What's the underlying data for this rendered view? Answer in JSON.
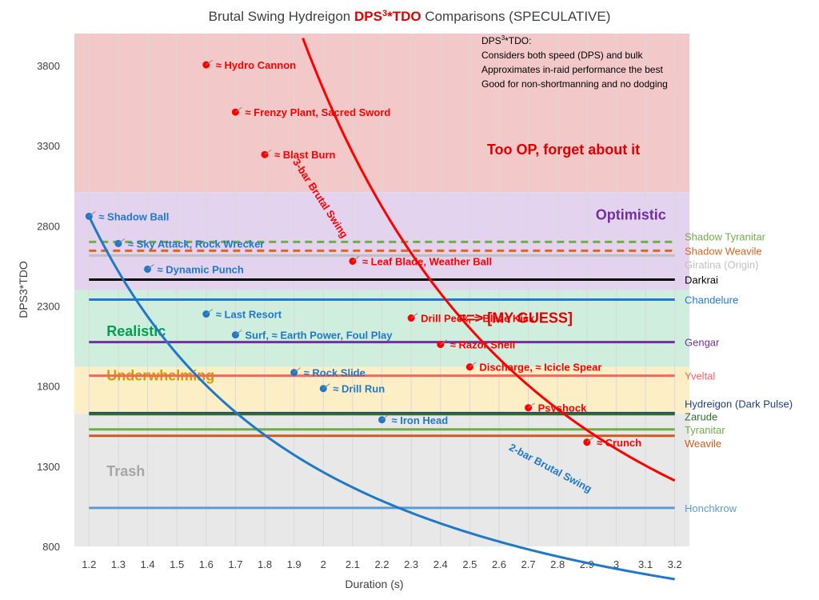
{
  "chart_data": {
    "type": "line",
    "title": {
      "prefix": "Brutal Swing Hydreigon ",
      "emphasis_base": "DPS",
      "emphasis_sup": "3",
      "emphasis_rest": "*TDO",
      "suffix": " Comparisons (SPECULATIVE)",
      "emphasis_color": "#e00000"
    },
    "xlabel": "Duration (s)",
    "ylabel": "DPS3*TDO",
    "xlim": [
      1.15,
      3.25
    ],
    "ylim": [
      800,
      4000
    ],
    "x_ticks": [
      "1.2",
      "1.3",
      "1.4",
      "1.5",
      "1.6",
      "1.7",
      "1.8",
      "1.9",
      "2",
      "2.1",
      "2.2",
      "2.3",
      "2.4",
      "2.5",
      "2.6",
      "2.7",
      "2.8",
      "2.9",
      "3",
      "3.1",
      "3.2"
    ],
    "y_ticks": [
      "800",
      "1300",
      "1800",
      "2300",
      "2800",
      "3300",
      "3800"
    ],
    "grid": true,
    "bands": [
      {
        "label": "Too OP, forget about it",
        "from": 3010,
        "to": 4000,
        "color": "#f2c8c8",
        "label_color": "#e00000",
        "label_x": 2.82,
        "label_y": 3245,
        "label_size": 18
      },
      {
        "label": "Optimistic",
        "from": 2400,
        "to": 3010,
        "color": "#e4d3ee",
        "label_color": "#7030a0",
        "label_x": 3.05,
        "label_y": 2840,
        "label_size": 18
      },
      {
        "label": "Realistic",
        "from": 1920,
        "to": 2400,
        "color": "#cfeedd",
        "label_color": "#00a050",
        "label_x": 1.26,
        "label_y": 2112,
        "label_size": 18
      },
      {
        "label": "Underwhelming",
        "from": 1630,
        "to": 1920,
        "color": "#fcefc6",
        "label_color": "#c8a000",
        "label_x": 1.26,
        "label_y": 1835,
        "label_size": 18
      },
      {
        "label": "Trash",
        "from": 800,
        "to": 1630,
        "color": "#e8e8e8",
        "label_color": "#a6a6a6",
        "label_x": 1.26,
        "label_y": 1240,
        "label_size": 18
      }
    ],
    "series": [
      {
        "name": "3-bar Brutal Swing",
        "color": "#ff0000",
        "curve": {
          "a": 2.4,
          "b": 2380,
          "p": 2.35
        },
        "label_x": 1.98,
        "label_y": 2960,
        "label_angle": 57,
        "points": [
          {
            "x": 1.6,
            "y": 3805,
            "label": "≈ Hydro Cannon"
          },
          {
            "x": 1.7,
            "y": 3510,
            "label": "≈ Frenzy Plant, Sacred Sword"
          },
          {
            "x": 1.8,
            "y": 3245,
            "label": "≈ Blast Burn"
          },
          {
            "x": 2.1,
            "y": 2580,
            "label": "≈ Leaf Blade, Weather Ball"
          },
          {
            "x": 2.3,
            "y": 2225,
            "label": "Drill Peck, ≈ Blaze Kick"
          },
          {
            "x": 2.4,
            "y": 2060,
            "label": "≈ Razor Shell"
          },
          {
            "x": 2.5,
            "y": 1920,
            "label": "Discharge, ≈ Icicle Spear"
          },
          {
            "x": 2.7,
            "y": 1665,
            "label": "Psyshock"
          },
          {
            "x": 2.9,
            "y": 1450,
            "label": "≈ Crunch"
          }
        ]
      },
      {
        "name": "2-bar Brutal Swing",
        "color": "#1f78c8",
        "curve": {
          "a": 1.2,
          "b": 2860,
          "p": 1.6
        },
        "label_x": 2.77,
        "label_y": 1270,
        "label_angle": 28,
        "points": [
          {
            "x": 1.2,
            "y": 2860,
            "label": "≈ Shadow Ball"
          },
          {
            "x": 1.3,
            "y": 2690,
            "label": "≈ Sky Attack, Rock Wrecker"
          },
          {
            "x": 1.4,
            "y": 2530,
            "label": "≈ Dynamic Punch"
          },
          {
            "x": 1.6,
            "y": 2250,
            "label": "≈ Last Resort"
          },
          {
            "x": 1.7,
            "y": 2120,
            "label": "Surf, ≈ Earth Power, Foul Play"
          },
          {
            "x": 1.9,
            "y": 1885,
            "label": "≈ Rock Slide"
          },
          {
            "x": 2.0,
            "y": 1785,
            "label": "≈ Drill Run"
          },
          {
            "x": 2.2,
            "y": 1590,
            "label": "≈ Iron Head"
          }
        ]
      }
    ],
    "reference_lines": [
      {
        "name": "Shadow Tyranitar",
        "value": 2700,
        "color": "#70ad47",
        "dashed": true,
        "label_value": 2735
      },
      {
        "name": "Shadow Weavile",
        "value": 2645,
        "color": "#e06420",
        "dashed": true,
        "label_value": 2645
      },
      {
        "name": "Giratina (Origin)",
        "value": 2615,
        "color": "#bfbfbf",
        "dashed": false,
        "label_value": 2560
      },
      {
        "name": "Darkrai",
        "value": 2465,
        "color": "#000000",
        "dashed": false,
        "label_value": 2465
      },
      {
        "name": "Chandelure",
        "value": 2340,
        "color": "#1f78d8",
        "dashed": false,
        "label_value": 2340
      },
      {
        "name": "Gengar",
        "value": 2075,
        "color": "#7030a0",
        "dashed": false,
        "label_value": 2075
      },
      {
        "name": "Yveltal",
        "value": 1865,
        "color": "#ff6060",
        "dashed": false,
        "label_value": 1865
      },
      {
        "name": "Hydreigon (Dark Pulse)",
        "value": 1632,
        "color": "#1f3f7f",
        "dashed": false,
        "label_value": 1690
      },
      {
        "name": "Zarude",
        "value": 1625,
        "color": "#2e6e2e",
        "dashed": false,
        "label_value": 1610
      },
      {
        "name": "Tyranitar",
        "value": 1530,
        "color": "#70ad47",
        "dashed": false,
        "label_value": 1530
      },
      {
        "name": "Weavile",
        "value": 1490,
        "color": "#d05a1a",
        "dashed": false,
        "label_value": 1445
      },
      {
        "name": "Honchkrow",
        "value": 1040,
        "color": "#5b9bd5",
        "dashed": false,
        "label_value": 1040
      }
    ],
    "annotations": [
      {
        "text": "==> [MY GUESS]",
        "color": "#e00000",
        "x": 2.46,
        "y": 2225,
        "size": 18,
        "weight": "bold",
        "anchor": "start"
      }
    ],
    "note": {
      "title_base": "DPS",
      "title_sup": "3",
      "title_rest": "*TDO:",
      "lines": [
        "Considers both speed (DPS) and bulk",
        "Approximates in-raid performance the best",
        "Good for non-shortmanning and no dodging"
      ],
      "x": 2.54,
      "y": 3935
    }
  }
}
